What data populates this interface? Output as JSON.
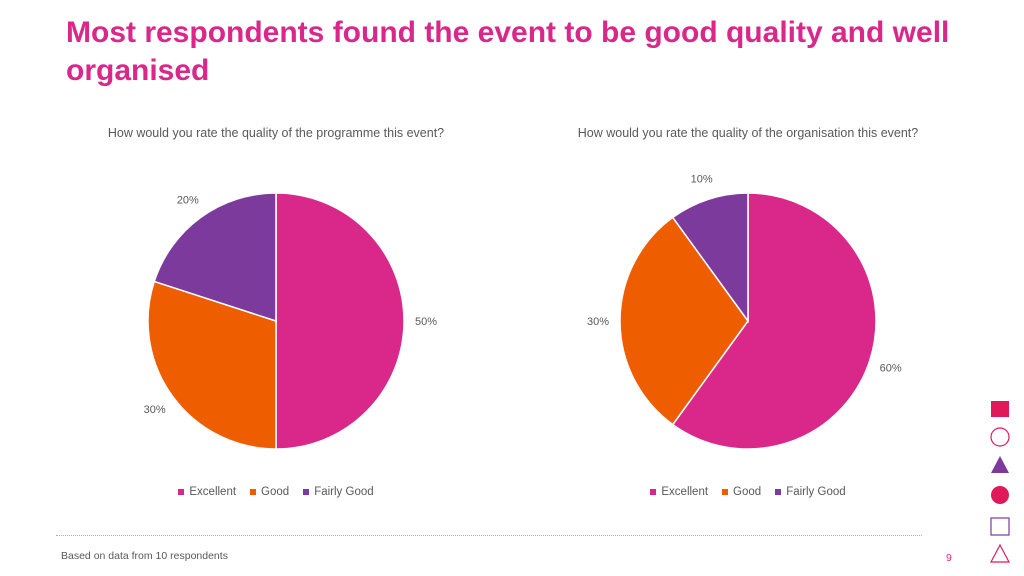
{
  "page": {
    "title": "Most respondents found the event to be good quality and well organised",
    "footnote": "Based on data from 10 respondents",
    "page_number": "9"
  },
  "colors": {
    "excellent": "#D9278A",
    "good": "#EE5E00",
    "fairly_good": "#7B3A9C",
    "accent": "#E0195A",
    "pink": "#D9278A"
  },
  "decor_icons": [
    "filled-square-icon",
    "circle-outline-icon",
    "filled-triangle-icon",
    "filled-circle-icon",
    "square-outline-icon",
    "triangle-outline-icon"
  ],
  "chart_data": [
    {
      "type": "pie",
      "title": "How would you rate the quality of the programme this event?",
      "categories": [
        "Excellent",
        "Good",
        "Fairly Good"
      ],
      "values": [
        50,
        30,
        20
      ],
      "labels": [
        "50%",
        "30%",
        "20%"
      ],
      "legend_position": "bottom",
      "start_angle": 0,
      "direction": "clockwise"
    },
    {
      "type": "pie",
      "title": "How would you rate the quality of the organisation this event?",
      "categories": [
        "Excellent",
        "Good",
        "Fairly Good"
      ],
      "values": [
        60,
        30,
        10
      ],
      "labels": [
        "60%",
        "30%",
        "10%"
      ],
      "legend_position": "bottom",
      "start_angle": 0,
      "direction": "clockwise"
    }
  ]
}
